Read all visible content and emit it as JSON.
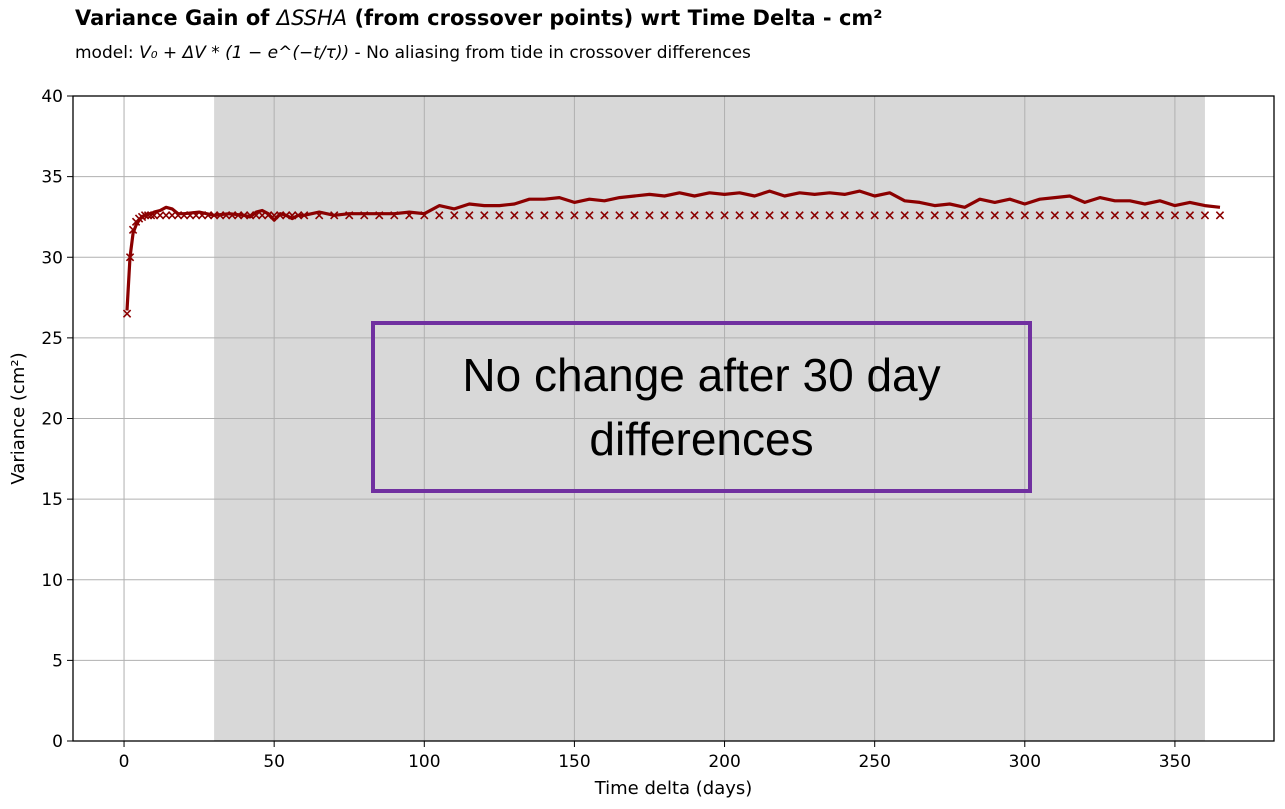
{
  "title": {
    "prefix": "Variance Gain of ",
    "symbol": "ΔSSHA",
    "suffix": " (from crossover points) wrt Time Delta - cm²"
  },
  "subtitle": {
    "model_prefix": "model: ",
    "formula": "V₀ + ΔV * (1 − e^(−t/τ))",
    "note": " - No aliasing from tide in crossover differences"
  },
  "callout": "No change after 30 day differences",
  "colors": {
    "series": "#8b0000",
    "shade": "#d8d8d8",
    "grid": "#b0b0b0",
    "callout_border": "#7030a0"
  },
  "chart_data": {
    "type": "line",
    "xlabel": "Time delta (days)",
    "ylabel": "Variance (cm²)",
    "xlim": [
      -17,
      383
    ],
    "ylim": [
      0,
      40
    ],
    "xticks": [
      0,
      50,
      100,
      150,
      200,
      250,
      300,
      350
    ],
    "yticks": [
      0,
      5,
      10,
      15,
      20,
      25,
      30,
      35,
      40
    ],
    "grid": true,
    "shaded_region": [
      30,
      360
    ],
    "series": [
      {
        "marker": "line",
        "x": [
          1,
          2,
          3,
          4,
          5,
          6,
          7,
          8,
          9,
          10,
          12,
          14,
          16,
          18,
          20,
          25,
          30,
          35,
          40,
          42,
          44,
          46,
          48,
          50,
          52,
          54,
          56,
          58,
          60,
          65,
          70,
          75,
          80,
          85,
          90,
          95,
          100,
          105,
          110,
          115,
          120,
          125,
          130,
          135,
          140,
          145,
          150,
          155,
          160,
          165,
          170,
          175,
          180,
          185,
          190,
          195,
          200,
          205,
          210,
          215,
          220,
          225,
          230,
          235,
          240,
          245,
          250,
          255,
          260,
          265,
          270,
          275,
          280,
          285,
          290,
          295,
          300,
          305,
          310,
          315,
          320,
          325,
          330,
          335,
          340,
          345,
          350,
          355,
          360,
          365
        ],
        "y": [
          26.7,
          30.0,
          31.5,
          32.0,
          32.3,
          32.5,
          32.6,
          32.7,
          32.7,
          32.8,
          32.9,
          33.1,
          33.0,
          32.7,
          32.7,
          32.8,
          32.6,
          32.7,
          32.6,
          32.5,
          32.8,
          32.9,
          32.7,
          32.3,
          32.7,
          32.6,
          32.4,
          32.6,
          32.6,
          32.8,
          32.6,
          32.7,
          32.7,
          32.7,
          32.7,
          32.8,
          32.7,
          33.2,
          33.0,
          33.3,
          33.2,
          33.2,
          33.3,
          33.6,
          33.6,
          33.7,
          33.4,
          33.6,
          33.5,
          33.7,
          33.8,
          33.9,
          33.8,
          34.0,
          33.8,
          34.0,
          33.9,
          34.0,
          33.8,
          34.1,
          33.8,
          34.0,
          33.9,
          34.0,
          33.9,
          34.1,
          33.8,
          34.0,
          33.5,
          33.4,
          33.2,
          33.3,
          33.1,
          33.6,
          33.4,
          33.6,
          33.3,
          33.6,
          33.7,
          33.8,
          33.4,
          33.7,
          33.5,
          33.5,
          33.3,
          33.5,
          33.2,
          33.4,
          33.2,
          33.1
        ]
      },
      {
        "marker": "x",
        "x": [
          1,
          2,
          3,
          4,
          5,
          6,
          7,
          8,
          9,
          10,
          12,
          14,
          16,
          18,
          20,
          22,
          24,
          26,
          28,
          30,
          32,
          34,
          36,
          38,
          40,
          42,
          44,
          46,
          48,
          50,
          52,
          54,
          56,
          58,
          60,
          65,
          70,
          75,
          80,
          85,
          90,
          95,
          100,
          105,
          110,
          115,
          120,
          125,
          130,
          135,
          140,
          145,
          150,
          155,
          160,
          165,
          170,
          175,
          180,
          185,
          190,
          195,
          200,
          205,
          210,
          215,
          220,
          225,
          230,
          235,
          240,
          245,
          250,
          255,
          260,
          265,
          270,
          275,
          280,
          285,
          290,
          295,
          300,
          305,
          310,
          315,
          320,
          325,
          330,
          335,
          340,
          345,
          350,
          355,
          360,
          365
        ],
        "y": [
          26.5,
          30.0,
          31.7,
          32.2,
          32.4,
          32.5,
          32.6,
          32.6,
          32.6,
          32.6,
          32.6,
          32.6,
          32.6,
          32.6,
          32.6,
          32.6,
          32.6,
          32.6,
          32.6,
          32.6,
          32.6,
          32.6,
          32.6,
          32.6,
          32.6,
          32.6,
          32.6,
          32.6,
          32.6,
          32.6,
          32.6,
          32.6,
          32.6,
          32.6,
          32.6,
          32.6,
          32.6,
          32.6,
          32.6,
          32.6,
          32.6,
          32.6,
          32.6,
          32.6,
          32.6,
          32.6,
          32.6,
          32.6,
          32.6,
          32.6,
          32.6,
          32.6,
          32.6,
          32.6,
          32.6,
          32.6,
          32.6,
          32.6,
          32.6,
          32.6,
          32.6,
          32.6,
          32.6,
          32.6,
          32.6,
          32.6,
          32.6,
          32.6,
          32.6,
          32.6,
          32.6,
          32.6,
          32.6,
          32.6,
          32.6,
          32.6,
          32.6,
          32.6,
          32.6,
          32.6,
          32.6,
          32.6,
          32.6,
          32.6,
          32.6,
          32.6,
          32.6,
          32.6,
          32.6,
          32.6,
          32.6,
          32.6,
          32.6,
          32.6,
          32.6,
          32.6
        ]
      }
    ]
  }
}
